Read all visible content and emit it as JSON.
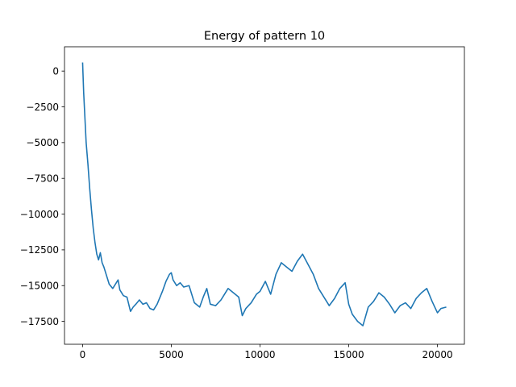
{
  "chart_data": {
    "type": "line",
    "title": "Energy of pattern 10",
    "xlabel": "",
    "ylabel": "",
    "xlim": [
      -1020,
      21520
    ],
    "ylim": [
      -19100,
      1700
    ],
    "xticks": [
      0,
      5000,
      10000,
      15000,
      20000
    ],
    "xtick_labels": [
      "0",
      "5000",
      "10000",
      "15000",
      "20000"
    ],
    "yticks": [
      0,
      -2500,
      -5000,
      -7500,
      -10000,
      -12500,
      -15000,
      -17500
    ],
    "ytick_labels": [
      "0",
      "−2500",
      "−5000",
      "−7500",
      "−10000",
      "−12500",
      "−15000",
      "−17500"
    ],
    "grid": false,
    "legend": "none",
    "series_color": "#1f77b4",
    "series": [
      {
        "x": [
          0,
          60,
          120,
          200,
          300,
          400,
          500,
          600,
          700,
          800,
          900,
          1000,
          1100,
          1200,
          1350,
          1500,
          1700,
          1900,
          2000,
          2100,
          2300,
          2500,
          2700,
          2850,
          3000,
          3200,
          3400,
          3600,
          3800,
          4000,
          4200,
          4500,
          4700,
          4900,
          5000,
          5100,
          5300,
          5500,
          5700,
          6000,
          6300,
          6600,
          6800,
          7000,
          7200,
          7500,
          7800,
          8000,
          8200,
          8500,
          8800,
          9000,
          9200,
          9500,
          9800,
          10000,
          10300,
          10600,
          10900,
          11200,
          11500,
          11800,
          12100,
          12400,
          12700,
          13000,
          13300,
          13600,
          13900,
          14200,
          14500,
          14800,
          15000,
          15200,
          15500,
          15800,
          16100,
          16400,
          16700,
          17000,
          17300,
          17600,
          17900,
          18200,
          18500,
          18800,
          19100,
          19400,
          19700,
          20000,
          20200,
          20500
        ],
        "y": [
          600,
          -1500,
          -3000,
          -5000,
          -6500,
          -8200,
          -9700,
          -11000,
          -12000,
          -12800,
          -13200,
          -12700,
          -13400,
          -13700,
          -14300,
          -14900,
          -15200,
          -14800,
          -14600,
          -15300,
          -15700,
          -15800,
          -16800,
          -16500,
          -16300,
          -16000,
          -16300,
          -16200,
          -16600,
          -16700,
          -16300,
          -15400,
          -14700,
          -14200,
          -14100,
          -14600,
          -15000,
          -14800,
          -15100,
          -15000,
          -16200,
          -16500,
          -15800,
          -15200,
          -16300,
          -16400,
          -16000,
          -15600,
          -15200,
          -15500,
          -15800,
          -17100,
          -16600,
          -16200,
          -15600,
          -15400,
          -14700,
          -15600,
          -14200,
          -13400,
          -13700,
          -14000,
          -13300,
          -12800,
          -13500,
          -14200,
          -15200,
          -15800,
          -16400,
          -15900,
          -15200,
          -14800,
          -16300,
          -17000,
          -17500,
          -17800,
          -16500,
          -16100,
          -15500,
          -15800,
          -16300,
          -16900,
          -16400,
          -16200,
          -16600,
          -15900,
          -15500,
          -15200,
          -16100,
          -16900,
          -16600,
          -16500
        ]
      }
    ]
  }
}
